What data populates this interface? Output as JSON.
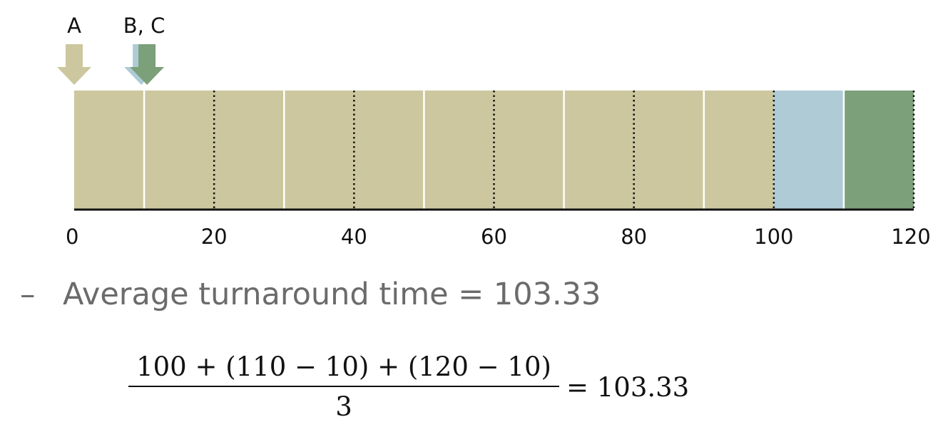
{
  "diagram": {
    "axis_ticks": [
      "0",
      "20",
      "40",
      "60",
      "80",
      "100",
      "120"
    ],
    "axis_range": [
      0,
      120
    ],
    "arrows": [
      {
        "label": "A",
        "jobs": [
          {
            "id": "A",
            "arrival": 0,
            "color": "#ccc79e"
          }
        ]
      },
      {
        "label": "B, C",
        "jobs": [
          {
            "id": "B",
            "arrival": 10,
            "color": "#aecbd6"
          },
          {
            "id": "C",
            "arrival": 10,
            "color": "#7ca07a"
          }
        ]
      }
    ],
    "segments": [
      {
        "job": "A",
        "start": 0,
        "end": 100,
        "color": "#ccc79e"
      },
      {
        "job": "B",
        "start": 100,
        "end": 110,
        "color": "#aecbd6"
      },
      {
        "job": "C",
        "start": 110,
        "end": 120,
        "color": "#7ca07a"
      }
    ],
    "solid_dividers": [
      10,
      30,
      50,
      70,
      90,
      110
    ],
    "dotted_dividers": [
      20,
      40,
      60,
      80,
      100,
      120
    ]
  },
  "text": {
    "bullet_dash": "–",
    "bullet": "Average turnaround time = 103.33",
    "formula_numerator": "100 + (110 − 10) + (120 − 10)",
    "formula_denominator": "3",
    "formula_result": "= 103.33"
  }
}
